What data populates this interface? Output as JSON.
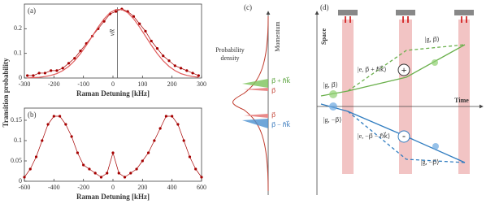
{
  "chart_data": [
    {
      "type": "line",
      "title": "(a)",
      "xlabel": "Raman Detuning [kHz]",
      "ylabel": "Transition probability",
      "xlim": [
        -300,
        300
      ],
      "xticks": [
        -300,
        -200,
        -100,
        0,
        100,
        200,
        300
      ],
      "ylim": [
        0,
        0.3
      ],
      "yticks": [
        0,
        0.1,
        0.2
      ],
      "annotation": {
        "text": "νR",
        "x": 15
      },
      "x": [
        -290,
        -270,
        -250,
        -230,
        -210,
        -190,
        -170,
        -150,
        -130,
        -110,
        -90,
        -70,
        -50,
        -30,
        -10,
        10,
        30,
        50,
        70,
        90,
        110,
        130,
        150,
        170,
        190,
        210,
        230,
        250,
        270,
        290
      ],
      "series": [
        {
          "color": "#a50000",
          "marker": true,
          "values": [
            0.01,
            0.01,
            0.02,
            0.02,
            0.03,
            0.03,
            0.04,
            0.06,
            0.08,
            0.11,
            0.14,
            0.17,
            0.2,
            0.23,
            0.26,
            0.27,
            0.28,
            0.27,
            0.25,
            0.22,
            0.19,
            0.15,
            0.12,
            0.09,
            0.07,
            0.05,
            0.04,
            0.03,
            0.02,
            0.01
          ]
        },
        {
          "color": "#e05a5a",
          "marker": false,
          "values": [
            0.0007,
            0.0016,
            0.003,
            0.006,
            0.011,
            0.018,
            0.03,
            0.047,
            0.07,
            0.099,
            0.133,
            0.17,
            0.207,
            0.24,
            0.265,
            0.278,
            0.278,
            0.265,
            0.24,
            0.207,
            0.17,
            0.133,
            0.099,
            0.07,
            0.047,
            0.03,
            0.018,
            0.011,
            0.006,
            0.003
          ]
        }
      ]
    },
    {
      "type": "line",
      "title": "(b)",
      "xlabel": "Raman Detuning [kHz]",
      "xlim": [
        -600,
        600
      ],
      "xticks": [
        -600,
        -400,
        -200,
        0,
        200,
        400,
        600
      ],
      "ylim": [
        0,
        0.18
      ],
      "yticks": [
        0,
        0.05,
        0.1,
        0.15
      ],
      "x": [
        -600,
        -560,
        -520,
        -480,
        -440,
        -400,
        -360,
        -320,
        -280,
        -240,
        -200,
        -160,
        -120,
        -80,
        -40,
        0,
        40,
        80,
        120,
        160,
        200,
        240,
        280,
        320,
        360,
        400,
        440,
        480,
        520,
        560,
        600
      ],
      "series": [
        {
          "color": "#a50000",
          "marker": true,
          "values": [
            0.01,
            0.03,
            0.06,
            0.1,
            0.14,
            0.16,
            0.16,
            0.14,
            0.11,
            0.07,
            0.04,
            0.03,
            0.02,
            0.01,
            0.02,
            0.07,
            0.02,
            0.01,
            0.02,
            0.03,
            0.05,
            0.07,
            0.1,
            0.13,
            0.16,
            0.16,
            0.14,
            0.1,
            0.06,
            0.03,
            0.01
          ]
        }
      ]
    }
  ],
  "diagrams": {
    "c": {
      "label": "(c)",
      "density": [
        "Probability",
        "density"
      ],
      "axis": "Momentum",
      "levels": [
        "p⃗ + ℏk⃗",
        "p⃗",
        "p⃗",
        "p⃗ − ℏk⃗"
      ]
    },
    "d": {
      "label": "(d)",
      "yaxis": "Space",
      "xaxis": "Time",
      "upper": [
        "|g, p⃗⟩",
        "|e, p⃗ + ℏk⃗⟩",
        "|g, p⃗⟩"
      ],
      "lower": [
        "|g, −p⃗⟩",
        "|e, −p⃗ − ℏk⃗⟩",
        "|g, −p⃗⟩"
      ],
      "plus": "+",
      "minus": "-"
    }
  }
}
